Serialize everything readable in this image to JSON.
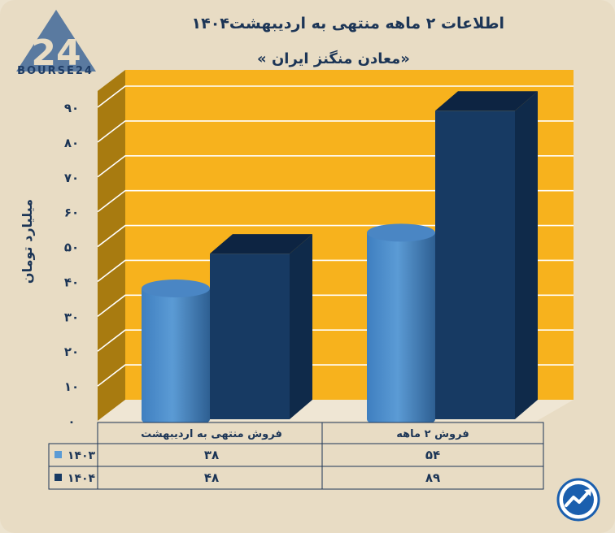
{
  "brand": {
    "logo_text": "BOURSE24",
    "logo_mark": "24"
  },
  "chart_data": {
    "type": "bar",
    "title": "اطلاعات ۲ ماهه منتهی به اردیبهشت۱۴۰۴",
    "subtitle": "«معادن منگنز ایران »",
    "ylabel": "میلیارد تومان",
    "ylim": [
      0,
      90
    ],
    "y_ticks": [
      "۰",
      "۱۰",
      "۲۰",
      "۳۰",
      "۴۰",
      "۵۰",
      "۶۰",
      "۷۰",
      "۸۰",
      "۹۰"
    ],
    "categories": [
      "فروش منتهی به  اردیبهشت",
      "فروش ۲  ماهه"
    ],
    "series": [
      {
        "name": "۱۴۰۳",
        "values": [
          38,
          54
        ],
        "display": [
          "۳۸",
          "۵۴"
        ],
        "color": "#5b9bd5",
        "shape": "cylinder"
      },
      {
        "name": "۱۴۰۴",
        "values": [
          48,
          89
        ],
        "display": [
          "۴۸",
          "۸۹"
        ],
        "color": "#173a63",
        "shape": "box"
      }
    ],
    "background_color": "#f7b21d",
    "wall_color": "#a87b10",
    "grid": true
  },
  "badge_icon": "trend-up-icon"
}
